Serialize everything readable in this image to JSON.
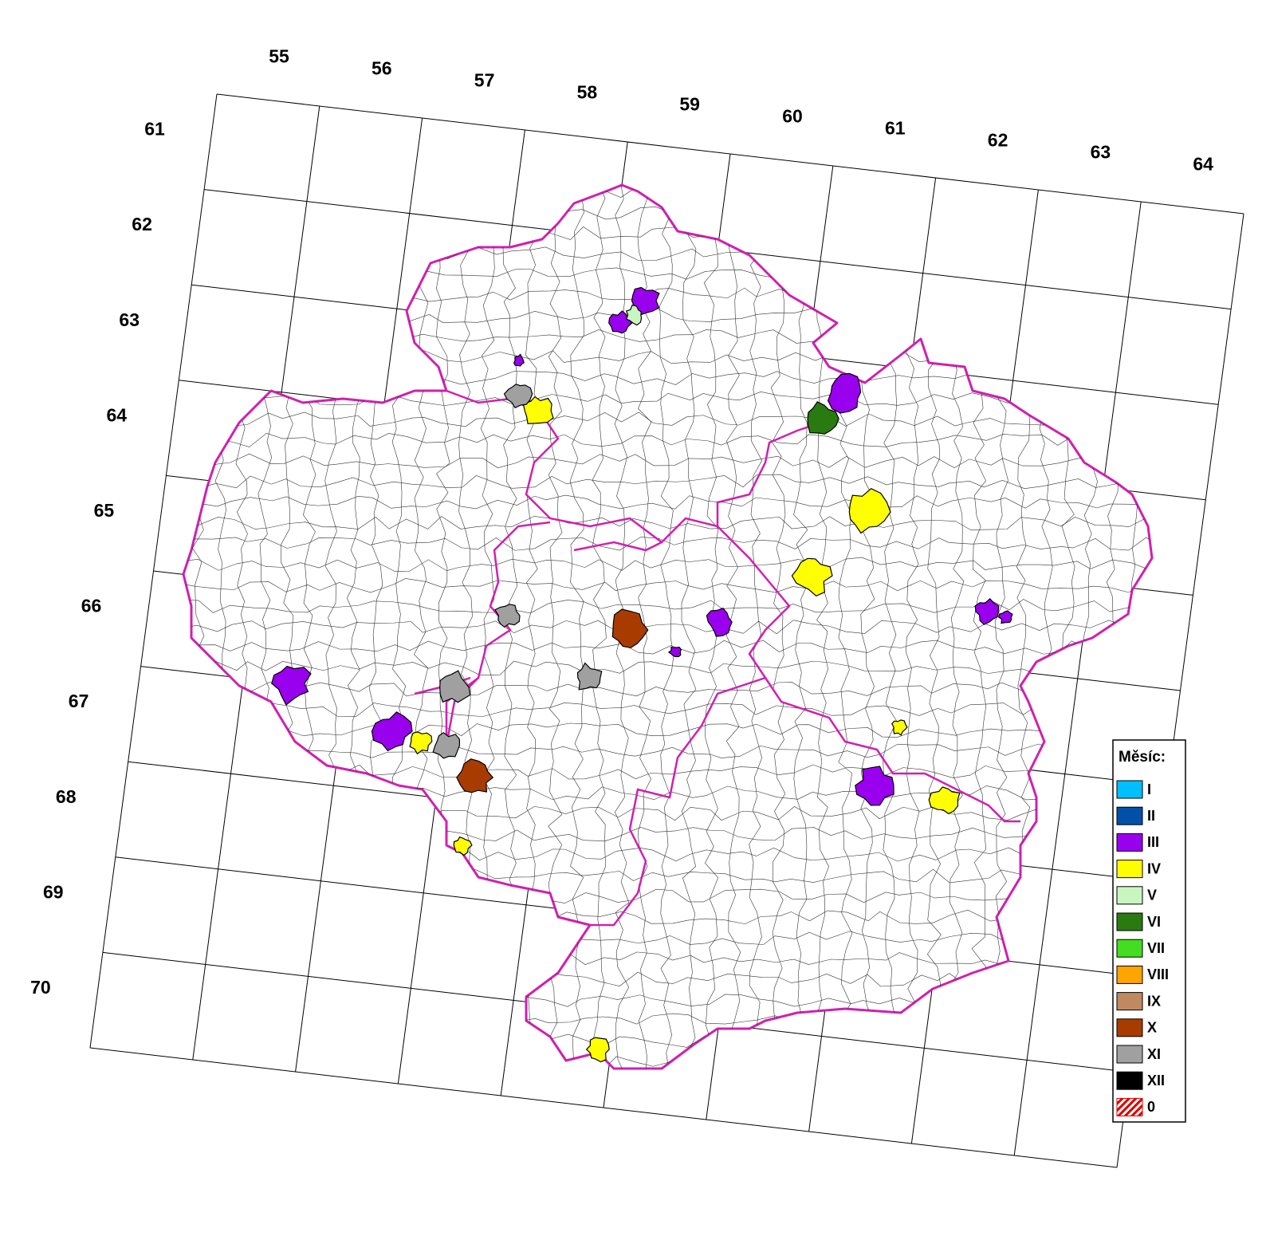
{
  "map": {
    "columns": [
      55,
      56,
      57,
      58,
      59,
      60,
      61,
      62,
      63,
      64
    ],
    "rows": [
      61,
      62,
      63,
      64,
      65,
      66,
      67,
      68,
      69,
      70
    ],
    "legend": {
      "title": "Měsíc:",
      "items": [
        {
          "label": "I",
          "color": "#00bfff"
        },
        {
          "label": "II",
          "color": "#0050a8"
        },
        {
          "label": "III",
          "color": "#9900ee"
        },
        {
          "label": "IV",
          "color": "#ffff00"
        },
        {
          "label": "V",
          "color": "#c8f5c0"
        },
        {
          "label": "VI",
          "color": "#2a7a12"
        },
        {
          "label": "VII",
          "color": "#44dd22"
        },
        {
          "label": "VIII",
          "color": "#ffa500"
        },
        {
          "label": "IX",
          "color": "#c08a60"
        },
        {
          "label": "X",
          "color": "#a83c00"
        },
        {
          "label": "XI",
          "color": "#a0a0a0"
        },
        {
          "label": "XII",
          "color": "#000000"
        },
        {
          "label": "0",
          "color": "#dd0000",
          "hatch": true
        }
      ]
    }
  }
}
